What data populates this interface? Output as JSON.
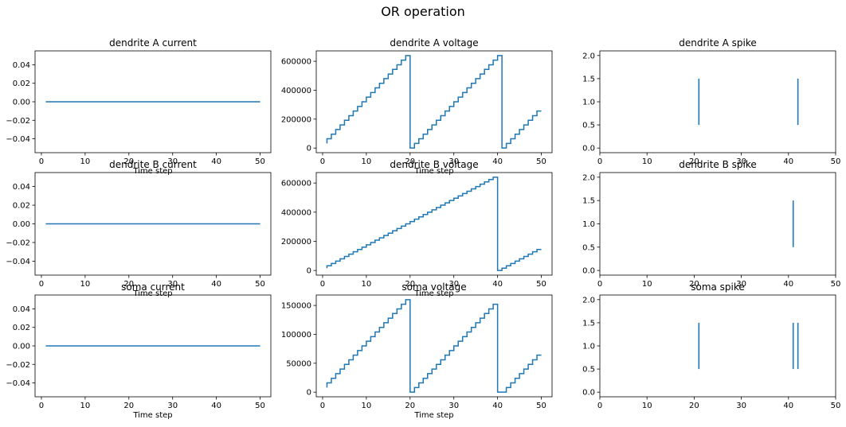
{
  "figure": {
    "title": "OR operation",
    "series_color": "#1f77b4"
  },
  "chart_data": [
    {
      "panel": "dendrite-a-current",
      "type": "line",
      "title": "dendrite A current",
      "xlabel": "Time step",
      "xlim": [
        -1.45,
        52.45
      ],
      "ylim": [
        -0.055,
        0.055
      ],
      "xticks": [
        0,
        10,
        20,
        30,
        40,
        50
      ],
      "yticks": [
        -0.04,
        -0.02,
        0.0,
        0.02,
        0.04
      ],
      "xtick_labels": [
        "0",
        "10",
        "20",
        "30",
        "40",
        "50"
      ],
      "ytick_labels": [
        "−0.04",
        "−0.02",
        "0.00",
        "0.02",
        "0.04"
      ],
      "series": [
        {
          "x": [
            1,
            50
          ],
          "y": [
            0,
            0
          ]
        }
      ]
    },
    {
      "panel": "dendrite-a-voltage",
      "type": "line",
      "step": true,
      "title": "dendrite A voltage",
      "xlabel": "Time step",
      "xlim": [
        -1.45,
        52.45
      ],
      "ylim": [
        -32000,
        672000
      ],
      "xticks": [
        0,
        10,
        20,
        30,
        40,
        50
      ],
      "yticks": [
        0,
        200000,
        400000,
        600000
      ],
      "xtick_labels": [
        "0",
        "10",
        "20",
        "30",
        "40",
        "50"
      ],
      "ytick_labels": [
        "0",
        "200000",
        "400000",
        "600000"
      ],
      "series": [
        {
          "x": [
            1,
            2,
            3,
            4,
            5,
            6,
            7,
            8,
            9,
            10,
            11,
            12,
            13,
            14,
            15,
            16,
            17,
            18,
            19,
            20,
            21,
            22,
            23,
            24,
            25,
            26,
            27,
            28,
            29,
            30,
            31,
            32,
            33,
            34,
            35,
            36,
            37,
            38,
            39,
            40,
            41,
            42,
            43,
            44,
            45,
            46,
            47,
            48,
            49,
            50
          ],
          "y": [
            32000,
            64000,
            96000,
            128000,
            160000,
            192000,
            224000,
            256000,
            288000,
            320000,
            352000,
            384000,
            416000,
            448000,
            480000,
            512000,
            544000,
            576000,
            608000,
            640000,
            0,
            32000,
            64000,
            96000,
            128000,
            160000,
            192000,
            224000,
            256000,
            288000,
            320000,
            352000,
            384000,
            416000,
            448000,
            480000,
            512000,
            544000,
            576000,
            608000,
            640000,
            0,
            32000,
            64000,
            96000,
            128000,
            160000,
            192000,
            224000,
            256000
          ]
        }
      ]
    },
    {
      "panel": "dendrite-a-spike",
      "type": "scatter",
      "marker": "vertical-line",
      "title": "dendrite A spike",
      "xlim": [
        0,
        50
      ],
      "ylim": [
        -0.1,
        2.1
      ],
      "xticks": [
        0,
        10,
        20,
        30,
        40,
        50
      ],
      "yticks": [
        0.0,
        0.5,
        1.0,
        1.5,
        2.0
      ],
      "xtick_labels": [
        "0",
        "10",
        "20",
        "30",
        "40",
        "50"
      ],
      "ytick_labels": [
        "0.0",
        "0.5",
        "1.0",
        "1.5",
        "2.0"
      ],
      "series": [
        {
          "x": [
            21,
            42
          ],
          "y": [
            1,
            1
          ]
        }
      ]
    },
    {
      "panel": "dendrite-b-current",
      "type": "line",
      "title": "dendrite B current",
      "xlabel": "Time step",
      "xlim": [
        -1.45,
        52.45
      ],
      "ylim": [
        -0.055,
        0.055
      ],
      "xticks": [
        0,
        10,
        20,
        30,
        40,
        50
      ],
      "yticks": [
        -0.04,
        -0.02,
        0.0,
        0.02,
        0.04
      ],
      "xtick_labels": [
        "0",
        "10",
        "20",
        "30",
        "40",
        "50"
      ],
      "ytick_labels": [
        "−0.04",
        "−0.02",
        "0.00",
        "0.02",
        "0.04"
      ],
      "series": [
        {
          "x": [
            1,
            50
          ],
          "y": [
            0,
            0
          ]
        }
      ]
    },
    {
      "panel": "dendrite-b-voltage",
      "type": "line",
      "step": true,
      "title": "dendrite B voltage",
      "xlabel": "Time step",
      "xlim": [
        -1.45,
        52.45
      ],
      "ylim": [
        -32000,
        672000
      ],
      "xticks": [
        0,
        10,
        20,
        30,
        40,
        50
      ],
      "yticks": [
        0,
        200000,
        400000,
        600000
      ],
      "xtick_labels": [
        "0",
        "10",
        "20",
        "30",
        "40",
        "50"
      ],
      "ytick_labels": [
        "0",
        "200000",
        "400000",
        "600000"
      ],
      "series": [
        {
          "x": [
            1,
            2,
            3,
            4,
            5,
            6,
            7,
            8,
            9,
            10,
            11,
            12,
            13,
            14,
            15,
            16,
            17,
            18,
            19,
            20,
            21,
            22,
            23,
            24,
            25,
            26,
            27,
            28,
            29,
            30,
            31,
            32,
            33,
            34,
            35,
            36,
            37,
            38,
            39,
            40,
            41,
            42,
            43,
            44,
            45,
            46,
            47,
            48,
            49,
            50
          ],
          "y": [
            16000,
            32000,
            48000,
            64000,
            80000,
            96000,
            112000,
            128000,
            144000,
            160000,
            176000,
            192000,
            208000,
            224000,
            240000,
            256000,
            272000,
            288000,
            304000,
            320000,
            336000,
            352000,
            368000,
            384000,
            400000,
            416000,
            432000,
            448000,
            464000,
            480000,
            496000,
            512000,
            528000,
            544000,
            560000,
            576000,
            592000,
            608000,
            624000,
            640000,
            0,
            16000,
            32000,
            48000,
            64000,
            80000,
            96000,
            112000,
            128000,
            144000
          ]
        }
      ]
    },
    {
      "panel": "dendrite-b-spike",
      "type": "scatter",
      "marker": "vertical-line",
      "title": "dendrite B spike",
      "xlim": [
        0,
        50
      ],
      "ylim": [
        -0.1,
        2.1
      ],
      "xticks": [
        0,
        10,
        20,
        30,
        40,
        50
      ],
      "yticks": [
        0.0,
        0.5,
        1.0,
        1.5,
        2.0
      ],
      "xtick_labels": [
        "0",
        "10",
        "20",
        "30",
        "40",
        "50"
      ],
      "ytick_labels": [
        "0.0",
        "0.5",
        "1.0",
        "1.5",
        "2.0"
      ],
      "series": [
        {
          "x": [
            41
          ],
          "y": [
            1
          ]
        }
      ]
    },
    {
      "panel": "soma-current",
      "type": "line",
      "title": "soma current",
      "xlabel": "Time step",
      "xlim": [
        -1.45,
        52.45
      ],
      "ylim": [
        -0.055,
        0.055
      ],
      "xticks": [
        0,
        10,
        20,
        30,
        40,
        50
      ],
      "yticks": [
        -0.04,
        -0.02,
        0.0,
        0.02,
        0.04
      ],
      "xtick_labels": [
        "0",
        "10",
        "20",
        "30",
        "40",
        "50"
      ],
      "ytick_labels": [
        "−0.04",
        "−0.02",
        "0.00",
        "0.02",
        "0.04"
      ],
      "series": [
        {
          "x": [
            1,
            50
          ],
          "y": [
            0,
            0
          ]
        }
      ]
    },
    {
      "panel": "soma-voltage",
      "type": "line",
      "step": true,
      "title": "soma voltage",
      "xlabel": "Time step",
      "xlim": [
        -1.45,
        52.45
      ],
      "ylim": [
        -8000,
        168000
      ],
      "xticks": [
        0,
        10,
        20,
        30,
        40,
        50
      ],
      "yticks": [
        0,
        50000,
        100000,
        150000
      ],
      "xtick_labels": [
        "0",
        "10",
        "20",
        "30",
        "40",
        "50"
      ],
      "ytick_labels": [
        "0",
        "50000",
        "100000",
        "150000"
      ],
      "series": [
        {
          "x": [
            1,
            2,
            3,
            4,
            5,
            6,
            7,
            8,
            9,
            10,
            11,
            12,
            13,
            14,
            15,
            16,
            17,
            18,
            19,
            20,
            21,
            22,
            23,
            24,
            25,
            26,
            27,
            28,
            29,
            30,
            31,
            32,
            33,
            34,
            35,
            36,
            37,
            38,
            39,
            40,
            41,
            42,
            43,
            44,
            45,
            46,
            47,
            48,
            49,
            50
          ],
          "y": [
            8000,
            16000,
            24000,
            32000,
            40000,
            48000,
            56000,
            64000,
            72000,
            80000,
            88000,
            96000,
            104000,
            112000,
            120000,
            128000,
            136000,
            144000,
            152000,
            160000,
            0,
            8000,
            16000,
            24000,
            32000,
            40000,
            48000,
            56000,
            64000,
            72000,
            80000,
            88000,
            96000,
            104000,
            112000,
            120000,
            128000,
            136000,
            144000,
            152000,
            0,
            0,
            8000,
            16000,
            24000,
            32000,
            40000,
            48000,
            56000,
            64000
          ]
        }
      ]
    },
    {
      "panel": "soma-spike",
      "type": "scatter",
      "marker": "vertical-line",
      "title": "soma spike",
      "xlim": [
        0,
        50
      ],
      "ylim": [
        -0.1,
        2.1
      ],
      "xticks": [
        0,
        10,
        20,
        30,
        40,
        50
      ],
      "yticks": [
        0.0,
        0.5,
        1.0,
        1.5,
        2.0
      ],
      "xtick_labels": [
        "0",
        "10",
        "20",
        "30",
        "40",
        "50"
      ],
      "ytick_labels": [
        "0.0",
        "0.5",
        "1.0",
        "1.5",
        "2.0"
      ],
      "series": [
        {
          "x": [
            21,
            41,
            42
          ],
          "y": [
            1,
            1,
            1
          ]
        }
      ]
    }
  ]
}
